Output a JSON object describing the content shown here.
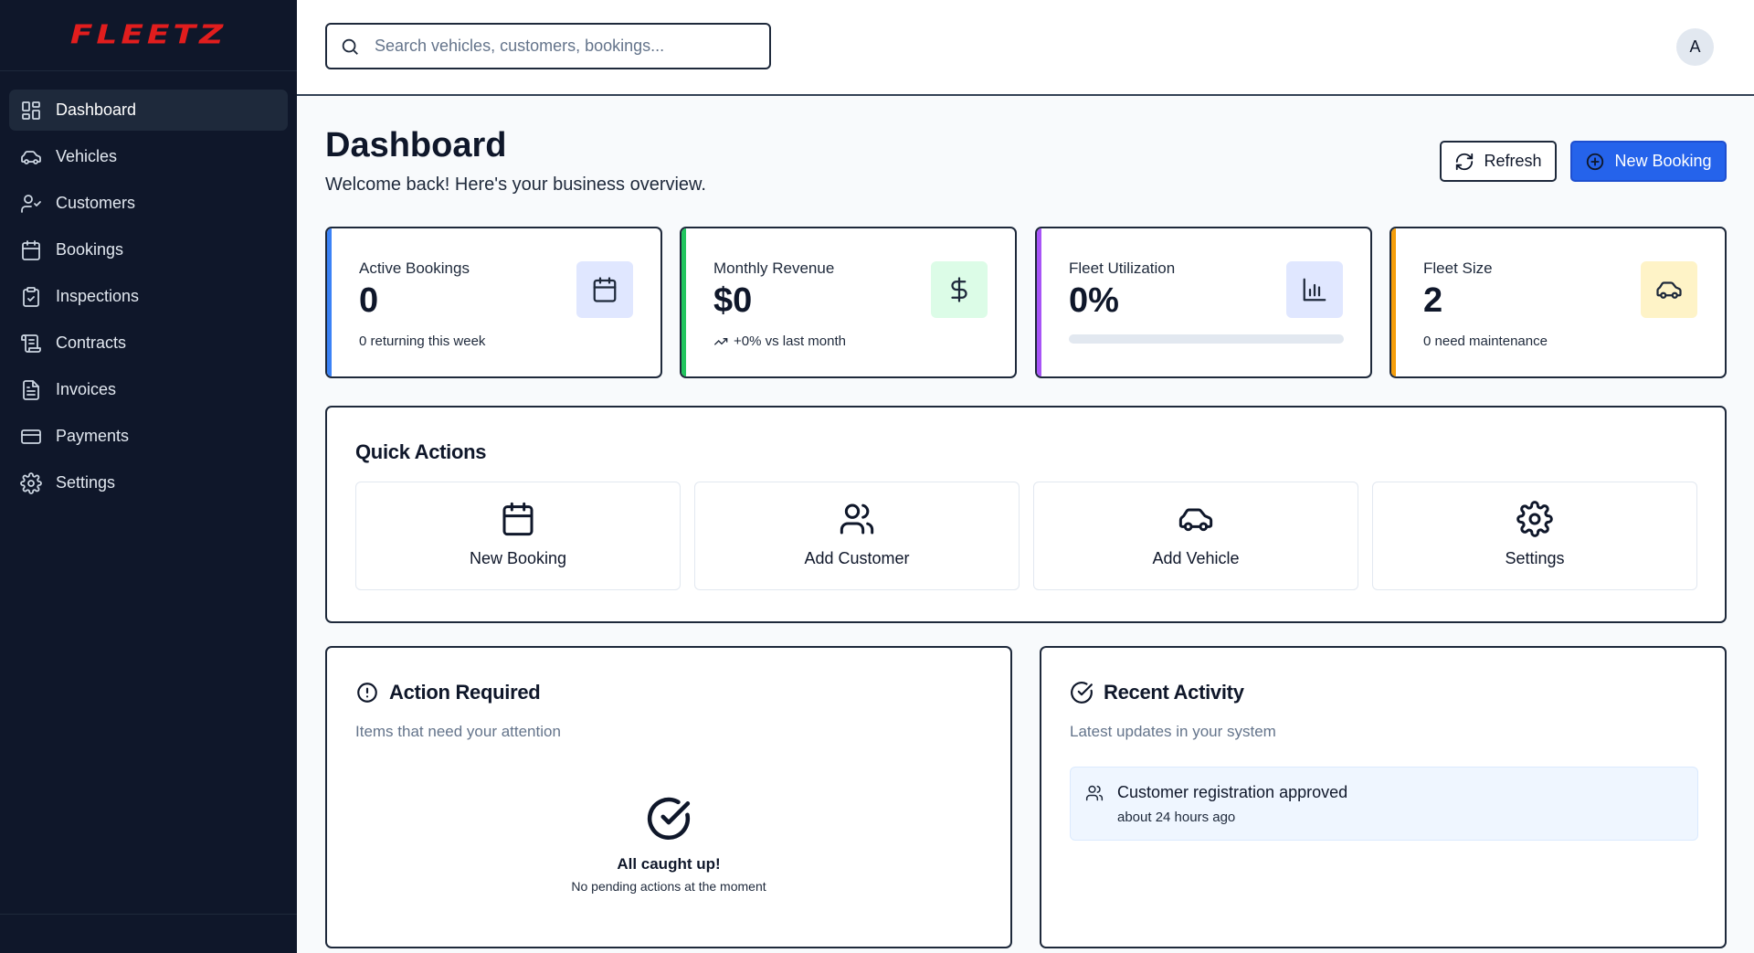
{
  "brand": {
    "logo_text": "FLEETZ",
    "accent": "#e11d1d"
  },
  "sidebar": {
    "items": [
      {
        "label": "Dashboard",
        "icon": "dashboard-icon",
        "active": true
      },
      {
        "label": "Vehicles",
        "icon": "car-icon"
      },
      {
        "label": "Customers",
        "icon": "user-check-icon"
      },
      {
        "label": "Bookings",
        "icon": "calendar-icon"
      },
      {
        "label": "Inspections",
        "icon": "clipboard-check-icon"
      },
      {
        "label": "Contracts",
        "icon": "scroll-icon"
      },
      {
        "label": "Invoices",
        "icon": "file-text-icon"
      },
      {
        "label": "Payments",
        "icon": "credit-card-icon"
      },
      {
        "label": "Settings",
        "icon": "gear-icon"
      }
    ]
  },
  "topbar": {
    "search_placeholder": "Search vehicles, customers, bookings...",
    "avatar_initial": "A"
  },
  "header": {
    "title": "Dashboard",
    "subtitle": "Welcome back! Here's your business overview.",
    "refresh_label": "Refresh",
    "new_booking_label": "New Booking"
  },
  "stats": [
    {
      "label": "Active Bookings",
      "value": "0",
      "note": "0 returning this week",
      "color": "#3b82f6",
      "icon": "calendar-icon",
      "icon_bg": "#e0e7ff"
    },
    {
      "label": "Monthly Revenue",
      "value": "$0",
      "note": "+0% vs last month",
      "color": "#22c55e",
      "icon": "dollar-icon",
      "icon_bg": "#dcfce7"
    },
    {
      "label": "Fleet Utilization",
      "value": "0%",
      "progress": 0,
      "color": "#a855f7",
      "icon": "bar-chart-icon",
      "icon_bg": "#e0e7ff"
    },
    {
      "label": "Fleet Size",
      "value": "2",
      "note": "0 need maintenance",
      "color": "#f59e0b",
      "icon": "car-icon",
      "icon_bg": "#fef3c7"
    }
  ],
  "quick_actions": {
    "title": "Quick Actions",
    "items": [
      {
        "label": "New Booking",
        "icon": "calendar-icon"
      },
      {
        "label": "Add Customer",
        "icon": "users-icon"
      },
      {
        "label": "Add Vehicle",
        "icon": "car-icon"
      },
      {
        "label": "Settings",
        "icon": "gear-icon"
      }
    ]
  },
  "action_required": {
    "title": "Action Required",
    "subtitle": "Items that need your attention",
    "empty_title": "All caught up!",
    "empty_subtitle": "No pending actions at the moment"
  },
  "recent_activity": {
    "title": "Recent Activity",
    "subtitle": "Latest updates in your system",
    "items": [
      {
        "title": "Customer registration approved",
        "time": "about 24 hours ago",
        "icon": "users-icon"
      }
    ]
  }
}
